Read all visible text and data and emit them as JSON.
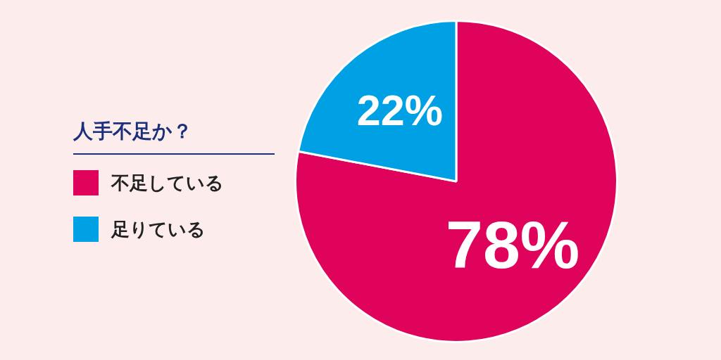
{
  "chart_data": {
    "type": "pie",
    "legend_title": "人手不足か？",
    "categories": [
      "不足している",
      "足りている"
    ],
    "values": [
      78,
      22
    ],
    "colors": [
      "#e0035b",
      "#00a0e4"
    ],
    "value_labels": [
      "78%",
      "22%"
    ],
    "legend": "left"
  }
}
